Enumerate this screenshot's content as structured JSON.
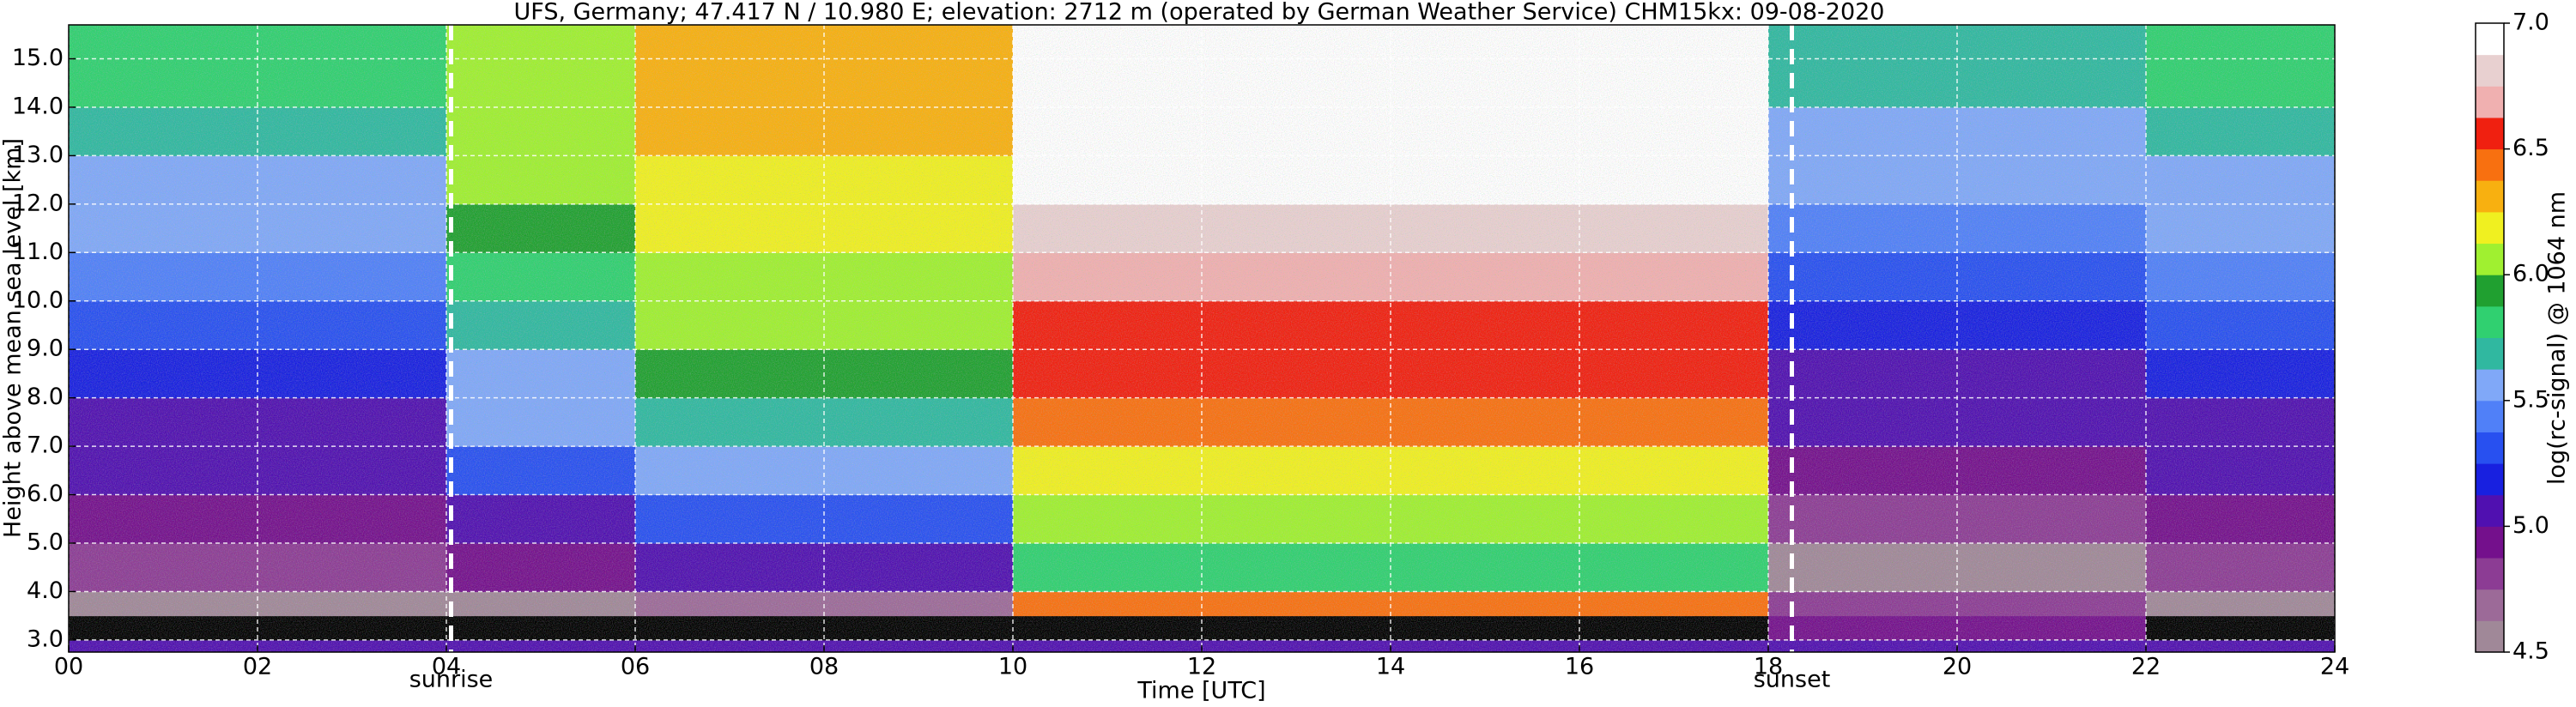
{
  "chart_data": {
    "type": "heatmap",
    "title": "UFS, Germany; 47.417 N / 10.980 E; elevation: 2712 m  (operated by German Weather Service)    CHM15kx: 09-08-2020",
    "xlabel": "Time [UTC]",
    "ylabel": "Height above mean sea level [km]",
    "colorbar_label": "log(rc-signal) @ 1064 nm",
    "xlim": [
      0,
      24
    ],
    "ylim": [
      2.75,
      15.7
    ],
    "clim": [
      4.5,
      7.0
    ],
    "xticks": [
      {
        "value": 0,
        "label": "00"
      },
      {
        "value": 2,
        "label": "02"
      },
      {
        "value": 4,
        "label": "04"
      },
      {
        "value": 6,
        "label": "06"
      },
      {
        "value": 8,
        "label": "08"
      },
      10,
      12,
      14,
      16,
      18,
      20,
      22,
      24
    ],
    "yticks": [
      {
        "value": 3,
        "label": "3.0"
      },
      {
        "value": 4,
        "label": "4.0"
      },
      {
        "value": 5,
        "label": "5.0"
      },
      {
        "value": 6,
        "label": "6.0"
      },
      {
        "value": 7,
        "label": "7.0"
      },
      {
        "value": 8,
        "label": "8.0"
      },
      {
        "value": 9,
        "label": "9.0"
      },
      {
        "value": 10,
        "label": "10.0"
      },
      {
        "value": 11,
        "label": "11.0"
      },
      {
        "value": 12,
        "label": "12.0"
      },
      {
        "value": 13,
        "label": "13.0"
      },
      {
        "value": 14,
        "label": "14.0"
      },
      {
        "value": 15,
        "label": "15.0"
      }
    ],
    "cticks": [
      {
        "value": 4.5,
        "label": "4.5"
      },
      {
        "value": 5.0,
        "label": "5.0"
      },
      {
        "value": 5.5,
        "label": "5.5"
      },
      {
        "value": 6.0,
        "label": "6.0"
      },
      {
        "value": 6.5,
        "label": "6.5"
      },
      {
        "value": 7.0,
        "label": "7.0"
      }
    ],
    "grid": true,
    "colormap": [
      "#a08898",
      "#9c6a98",
      "#8c3c94",
      "#74108c",
      "#5010b0",
      "#1820e0",
      "#2850f0",
      "#5080f8",
      "#80a8f8",
      "#30b8a0",
      "#30d070",
      "#20a030",
      "#a0f030",
      "#f0f020",
      "#f8b010",
      "#f87010",
      "#f02010",
      "#f0b0b0",
      "#e8d0d0",
      "#ffffff"
    ],
    "under_color": "#000000",
    "x_edges": [
      0,
      1,
      2,
      3,
      4,
      5,
      6,
      7,
      8,
      9,
      10,
      11,
      12,
      13,
      14,
      15,
      16,
      17,
      18,
      19,
      20,
      21,
      22,
      23,
      24
    ],
    "y_edges": [
      2.75,
      3.0,
      3.5,
      4.0,
      5,
      6,
      7,
      8,
      9,
      10,
      11,
      12,
      13,
      14,
      15,
      15.7
    ],
    "z": [
      [
        5.0,
        4.4,
        4.6,
        4.8,
        4.9,
        5.0,
        5.1,
        5.2,
        5.3,
        5.4,
        5.5,
        5.6,
        5.7,
        5.8,
        5.8
      ],
      [
        5.0,
        4.4,
        4.6,
        4.8,
        4.9,
        5.0,
        5.1,
        5.2,
        5.3,
        5.4,
        5.5,
        5.6,
        5.7,
        5.8,
        5.8
      ],
      [
        5.0,
        4.4,
        4.6,
        4.8,
        4.9,
        5.0,
        5.1,
        5.2,
        5.3,
        5.4,
        5.5,
        5.6,
        5.7,
        5.8,
        5.8
      ],
      [
        5.0,
        4.4,
        4.6,
        4.8,
        4.9,
        5.0,
        5.1,
        5.2,
        5.3,
        5.4,
        5.5,
        5.6,
        5.7,
        5.8,
        5.8
      ],
      [
        5.0,
        4.4,
        4.6,
        4.9,
        5.1,
        5.3,
        5.5,
        5.6,
        5.7,
        5.8,
        5.9,
        6.0,
        6.0,
        6.1,
        6.1
      ],
      [
        5.0,
        4.4,
        4.6,
        4.9,
        5.1,
        5.3,
        5.5,
        5.6,
        5.7,
        5.8,
        5.9,
        6.0,
        6.0,
        6.1,
        6.1
      ],
      [
        5.0,
        4.4,
        4.7,
        5.0,
        5.3,
        5.5,
        5.7,
        5.9,
        6.0,
        6.1,
        6.2,
        6.2,
        6.3,
        6.3,
        6.3
      ],
      [
        5.0,
        4.4,
        4.7,
        5.0,
        5.3,
        5.5,
        5.7,
        5.9,
        6.0,
        6.1,
        6.2,
        6.2,
        6.3,
        6.3,
        6.3
      ],
      [
        5.0,
        4.4,
        4.7,
        5.0,
        5.3,
        5.5,
        5.7,
        5.9,
        6.0,
        6.1,
        6.2,
        6.2,
        6.3,
        6.3,
        6.3
      ],
      [
        5.0,
        4.4,
        4.7,
        5.0,
        5.3,
        5.5,
        5.7,
        5.9,
        6.0,
        6.1,
        6.2,
        6.2,
        6.3,
        6.3,
        6.3
      ],
      [
        5.1,
        4.3,
        6.4,
        5.8,
        6.0,
        6.2,
        6.4,
        6.5,
        6.6,
        6.7,
        6.8,
        6.9,
        7.0,
        7.0,
        7.0
      ],
      [
        5.1,
        4.3,
        6.4,
        5.8,
        6.0,
        6.2,
        6.4,
        6.5,
        6.6,
        6.7,
        6.8,
        6.9,
        7.0,
        7.0,
        7.0
      ],
      [
        5.1,
        4.3,
        6.4,
        5.8,
        6.0,
        6.2,
        6.4,
        6.5,
        6.6,
        6.7,
        6.8,
        6.9,
        7.0,
        7.0,
        7.0
      ],
      [
        5.1,
        4.3,
        6.4,
        5.8,
        6.0,
        6.2,
        6.4,
        6.5,
        6.6,
        6.7,
        6.8,
        6.9,
        7.0,
        7.0,
        7.0
      ],
      [
        5.1,
        4.3,
        6.4,
        5.8,
        6.0,
        6.2,
        6.4,
        6.5,
        6.6,
        6.7,
        6.8,
        6.9,
        7.0,
        7.0,
        7.0
      ],
      [
        5.1,
        4.3,
        6.4,
        5.8,
        6.0,
        6.2,
        6.4,
        6.5,
        6.6,
        6.7,
        6.8,
        6.9,
        7.0,
        7.0,
        7.0
      ],
      [
        5.1,
        4.3,
        6.4,
        5.8,
        6.0,
        6.2,
        6.4,
        6.5,
        6.6,
        6.7,
        6.8,
        6.9,
        7.0,
        7.0,
        7.0
      ],
      [
        5.1,
        4.3,
        6.4,
        5.8,
        6.0,
        6.2,
        6.4,
        6.5,
        6.6,
        6.7,
        6.8,
        6.9,
        7.0,
        7.0,
        7.0
      ],
      [
        5.0,
        4.9,
        4.8,
        4.6,
        4.8,
        4.9,
        5.0,
        5.1,
        5.2,
        5.3,
        5.4,
        5.5,
        5.6,
        5.7,
        5.7
      ],
      [
        5.0,
        4.9,
        4.8,
        4.6,
        4.8,
        4.9,
        5.0,
        5.1,
        5.2,
        5.3,
        5.4,
        5.5,
        5.6,
        5.7,
        5.7
      ],
      [
        5.0,
        4.9,
        4.8,
        4.6,
        4.8,
        4.9,
        5.0,
        5.1,
        5.2,
        5.3,
        5.4,
        5.5,
        5.6,
        5.7,
        5.7
      ],
      [
        5.0,
        4.9,
        4.8,
        4.6,
        4.8,
        4.9,
        5.0,
        5.1,
        5.2,
        5.3,
        5.4,
        5.5,
        5.6,
        5.7,
        5.7
      ],
      [
        5.0,
        4.4,
        4.6,
        4.8,
        4.9,
        5.0,
        5.1,
        5.2,
        5.3,
        5.4,
        5.5,
        5.6,
        5.7,
        5.8,
        5.8
      ],
      [
        5.0,
        4.4,
        4.6,
        4.8,
        4.9,
        5.0,
        5.1,
        5.2,
        5.3,
        5.4,
        5.5,
        5.6,
        5.7,
        5.8,
        5.8
      ]
    ],
    "annotations": [
      {
        "x": 4.05,
        "text": "sunrise"
      },
      {
        "x": 18.25,
        "text": "sunset"
      }
    ]
  }
}
